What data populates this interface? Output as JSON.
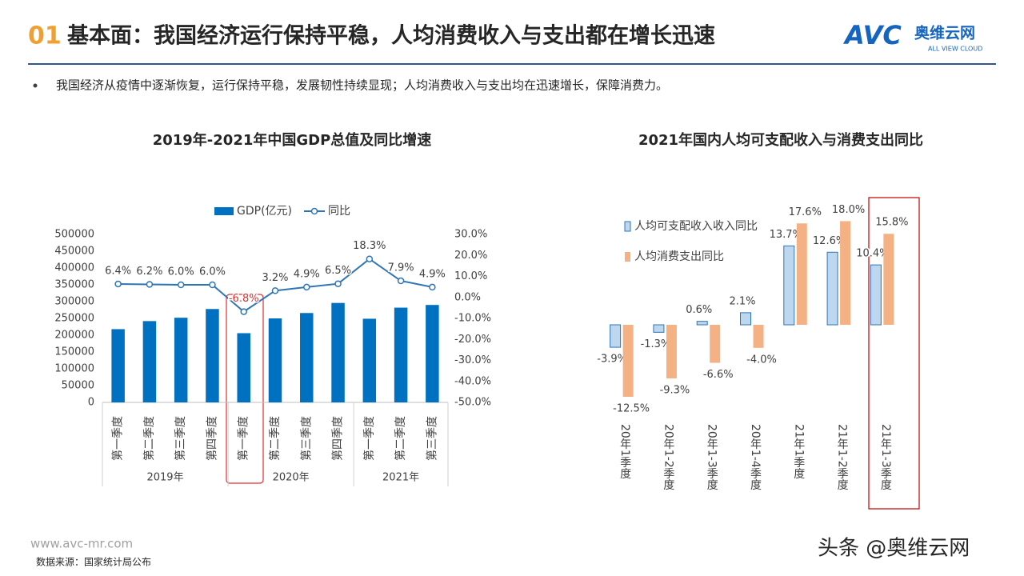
{
  "header": {
    "number": "01",
    "title": "基本面：我国经济运行保持平稳，人均消费收入与支出都在增长迅速",
    "logo": "AVC",
    "logo_name": "奥维云网",
    "logo_sub": "ALL VIEW CLOUD"
  },
  "bullet": "我国经济从疫情中逐渐恢复，运行保持平稳，发展韧性持续显现；人均消费收入与支出均在迅速增长，保障消费力。",
  "chart_data": [
    {
      "type": "bar",
      "title": "2019年-2021年中国GDP总值及同比增速",
      "groups": [
        {
          "name": "2019年",
          "categories": [
            "第一季度",
            "第二季度",
            "第三季度",
            "第四季度"
          ]
        },
        {
          "name": "2020年",
          "categories": [
            "第一季度",
            "第二季度",
            "第三季度",
            "第四季度"
          ]
        },
        {
          "name": "2021年",
          "categories": [
            "第一季度",
            "第二季度",
            "第三季度"
          ]
        }
      ],
      "series": [
        {
          "name": "GDP(亿元)",
          "color": "#0070c0",
          "values": [
            218000,
            242000,
            252000,
            278000,
            206000,
            250000,
            266000,
            296000,
            249000,
            282000,
            290000
          ]
        },
        {
          "name": "同比",
          "type": "line",
          "axis": "y2",
          "color": "#2e75b6",
          "values": [
            6.4,
            6.2,
            6.0,
            6.0,
            -6.8,
            3.2,
            4.9,
            6.5,
            18.3,
            7.9,
            4.9
          ],
          "value_labels": [
            "6.4%",
            "6.2%",
            "6.0%",
            "6.0%",
            "-6.8%",
            "3.2%",
            "4.9%",
            "6.5%",
            "18.3%",
            "7.9%",
            "4.9%"
          ]
        }
      ],
      "ylim": [
        0,
        500000
      ],
      "yticks": [
        0,
        50000,
        100000,
        150000,
        200000,
        250000,
        300000,
        350000,
        400000,
        450000,
        500000
      ],
      "y2lim": [
        -50,
        30
      ],
      "y2ticks": [
        {
          "value": -50,
          "label": "-50.0%"
        },
        {
          "value": -40,
          "label": "-40.0%"
        },
        {
          "value": -30,
          "label": "-30.0%"
        },
        {
          "value": -20,
          "label": "-20.0%"
        },
        {
          "value": -10,
          "label": "-10.0%"
        },
        {
          "value": 0,
          "label": "0.0%"
        },
        {
          "value": 10,
          "label": "10.0%"
        },
        {
          "value": 20,
          "label": "20.0%"
        },
        {
          "value": 30,
          "label": "30.0%"
        }
      ],
      "grid": false,
      "legend": "top"
    },
    {
      "type": "bar",
      "title": "2021年国内人均可支配收入与消费支出同比",
      "categories": [
        "20年1季度",
        "20年1-2季度",
        "20年1-3季度",
        "20年1-4季度",
        "21年1季度",
        "21年1-2季度",
        "21年1-3季度"
      ],
      "series": [
        {
          "name": "人均可支配收入收入同比",
          "color": "#bdd7ee",
          "values": [
            -3.9,
            -1.3,
            0.6,
            2.1,
            13.7,
            12.6,
            10.4
          ],
          "value_labels": [
            "-3.9%",
            "-1.3%",
            "0.6%",
            "2.1%",
            "13.7%",
            "12.6%",
            "10.4%"
          ]
        },
        {
          "name": "人均消费支出同比",
          "color": "#f4b183",
          "values": [
            -12.5,
            -9.3,
            -6.6,
            -4.0,
            17.6,
            18.0,
            15.8
          ],
          "value_labels": [
            "-12.5%",
            "-9.3%",
            "-6.6%",
            "-4.0%",
            "17.6%",
            "18.0%",
            "15.8%"
          ]
        }
      ],
      "ylim": [
        -15,
        20
      ],
      "grid": false,
      "legend": "top-left"
    }
  ],
  "footer": {
    "site": "www.avc-mr.com",
    "source": "数据来源：国家统计局公布",
    "watermark": "头条 @奥维云网"
  }
}
